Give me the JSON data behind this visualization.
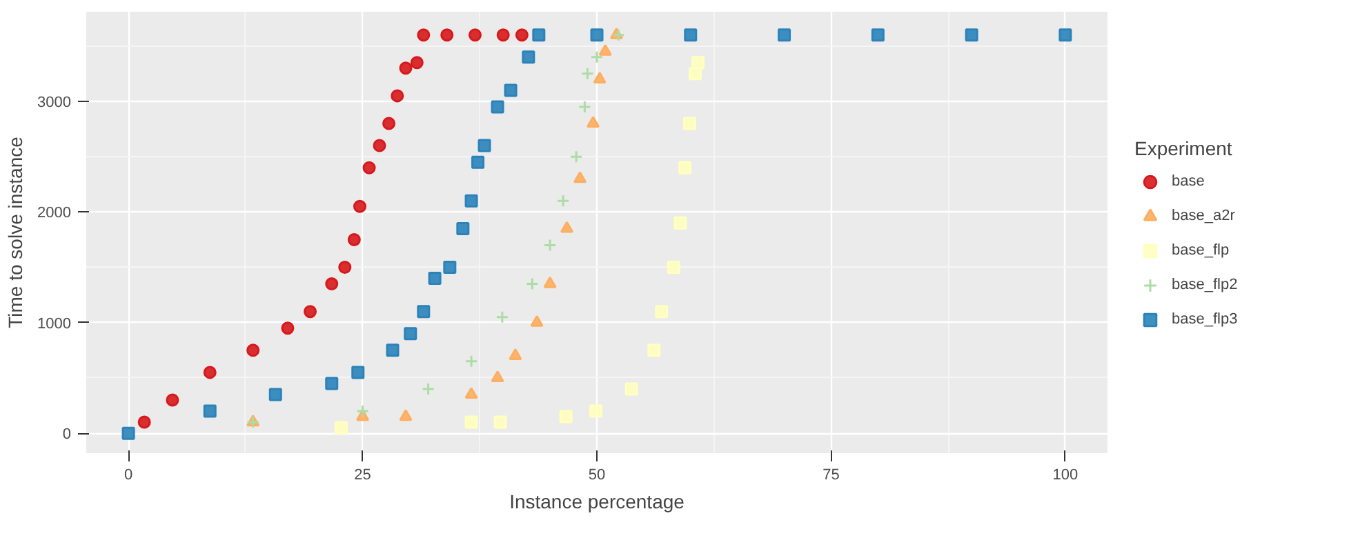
{
  "chart_data": {
    "type": "scatter",
    "xlabel": "Instance percentage",
    "ylabel": "Time to solve instance",
    "legend_title": "Experiment",
    "legend": "right",
    "grid": true,
    "xlim": [
      -4.5,
      104.5
    ],
    "ylim": [
      -180,
      3810
    ],
    "xticks": [
      0,
      25,
      50,
      75,
      100
    ],
    "yticks": [
      0,
      1000,
      2000,
      3000
    ],
    "series": [
      {
        "name": "base",
        "color": "#d7191c",
        "marker": "circle",
        "x": [
          1.7,
          4.7,
          8.7,
          13.3,
          17,
          19.4,
          21.7,
          23.1,
          24.1,
          24.7,
          25.7,
          26.8,
          27.8,
          28.7,
          29.6,
          30.8,
          31.5,
          34,
          37,
          40,
          42
        ],
        "values": [
          100,
          300,
          550,
          750,
          950,
          1100,
          1350,
          1500,
          1750,
          2050,
          2400,
          2600,
          2800,
          3050,
          3300,
          3350,
          3600,
          3600,
          3600,
          3600,
          3600
        ]
      },
      {
        "name": "base_a2r",
        "color": "#fdae61",
        "marker": "triangle",
        "x": [
          13.3,
          25,
          29.6,
          36.6,
          39.4,
          41.3,
          43.6,
          45,
          46.8,
          48.2,
          49.6,
          50.3,
          50.9,
          52.1
        ],
        "values": [
          100,
          150,
          150,
          350,
          500,
          700,
          1000,
          1350,
          1850,
          2300,
          2800,
          3200,
          3450,
          3600
        ]
      },
      {
        "name": "base_flp",
        "color": "#ffffbf",
        "marker": "square",
        "x": [
          22.7,
          36.6,
          39.7,
          46.7,
          49.9,
          53.7,
          56.1,
          56.9,
          58.2,
          58.9,
          59.4,
          59.9,
          60.5,
          60.8
        ],
        "values": [
          50,
          100,
          100,
          150,
          200,
          400,
          750,
          1100,
          1500,
          1900,
          2400,
          2800,
          3250,
          3350
        ]
      },
      {
        "name": "base_flp2",
        "color": "#abdda4",
        "marker": "cross",
        "x": [
          13.3,
          25,
          32,
          36.6,
          39.9,
          43.1,
          45,
          46.4,
          47.8,
          48.7,
          49,
          50,
          52.3
        ],
        "values": [
          100,
          200,
          400,
          650,
          1050,
          1350,
          1700,
          2100,
          2500,
          2950,
          3250,
          3400,
          3600
        ]
      },
      {
        "name": "base_flp3",
        "color": "#2b83ba",
        "marker": "square",
        "x": [
          0,
          8.7,
          15.7,
          21.7,
          24.5,
          28.2,
          30.1,
          31.5,
          32.7,
          34.3,
          35.7,
          36.6,
          37.3,
          38,
          39.4,
          40.8,
          42.7,
          43.8,
          50,
          60,
          70,
          80,
          90,
          100
        ],
        "values": [
          0,
          200,
          350,
          450,
          550,
          750,
          900,
          1100,
          1400,
          1500,
          1850,
          2100,
          2450,
          2600,
          2950,
          3100,
          3400,
          3600,
          3600,
          3600,
          3600,
          3600,
          3600,
          3600
        ]
      }
    ]
  }
}
